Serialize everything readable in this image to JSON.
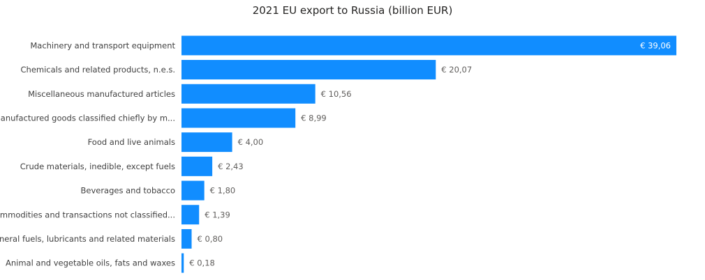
{
  "chart_data": {
    "type": "bar",
    "orientation": "horizontal",
    "title": "2021 EU export to Russia (billion EUR)",
    "categories": [
      "Machinery and transport equipment",
      "Chemicals and related products, n.e.s.",
      "Miscellaneous manufactured articles",
      "Manufactured goods classified chiefly by m...",
      "Food and live animals",
      "Crude materials, inedible, except fuels",
      "Beverages and tobacco",
      "Commodities and transactions not classified...",
      "Mineral fuels, lubricants and related materials",
      "Animal and vegetable oils, fats and waxes"
    ],
    "values": [
      39.06,
      20.07,
      10.56,
      8.99,
      4.0,
      2.43,
      1.8,
      1.39,
      0.8,
      0.18
    ],
    "data_labels": [
      "€ 39,06",
      "€ 20,07",
      "€ 10,56",
      "€ 8,99",
      "€ 4,00",
      "€ 2,43",
      "€ 1,80",
      "€ 1,39",
      "€ 0,80",
      "€ 0,18"
    ],
    "xlim": [
      0,
      39.06
    ],
    "grid": false,
    "legend": "none",
    "colors": {
      "bar": "#118DFF",
      "label_inside": "#ffffff",
      "label_outside": "#605E5C",
      "category_text": "#404040",
      "title": "#252423"
    }
  }
}
